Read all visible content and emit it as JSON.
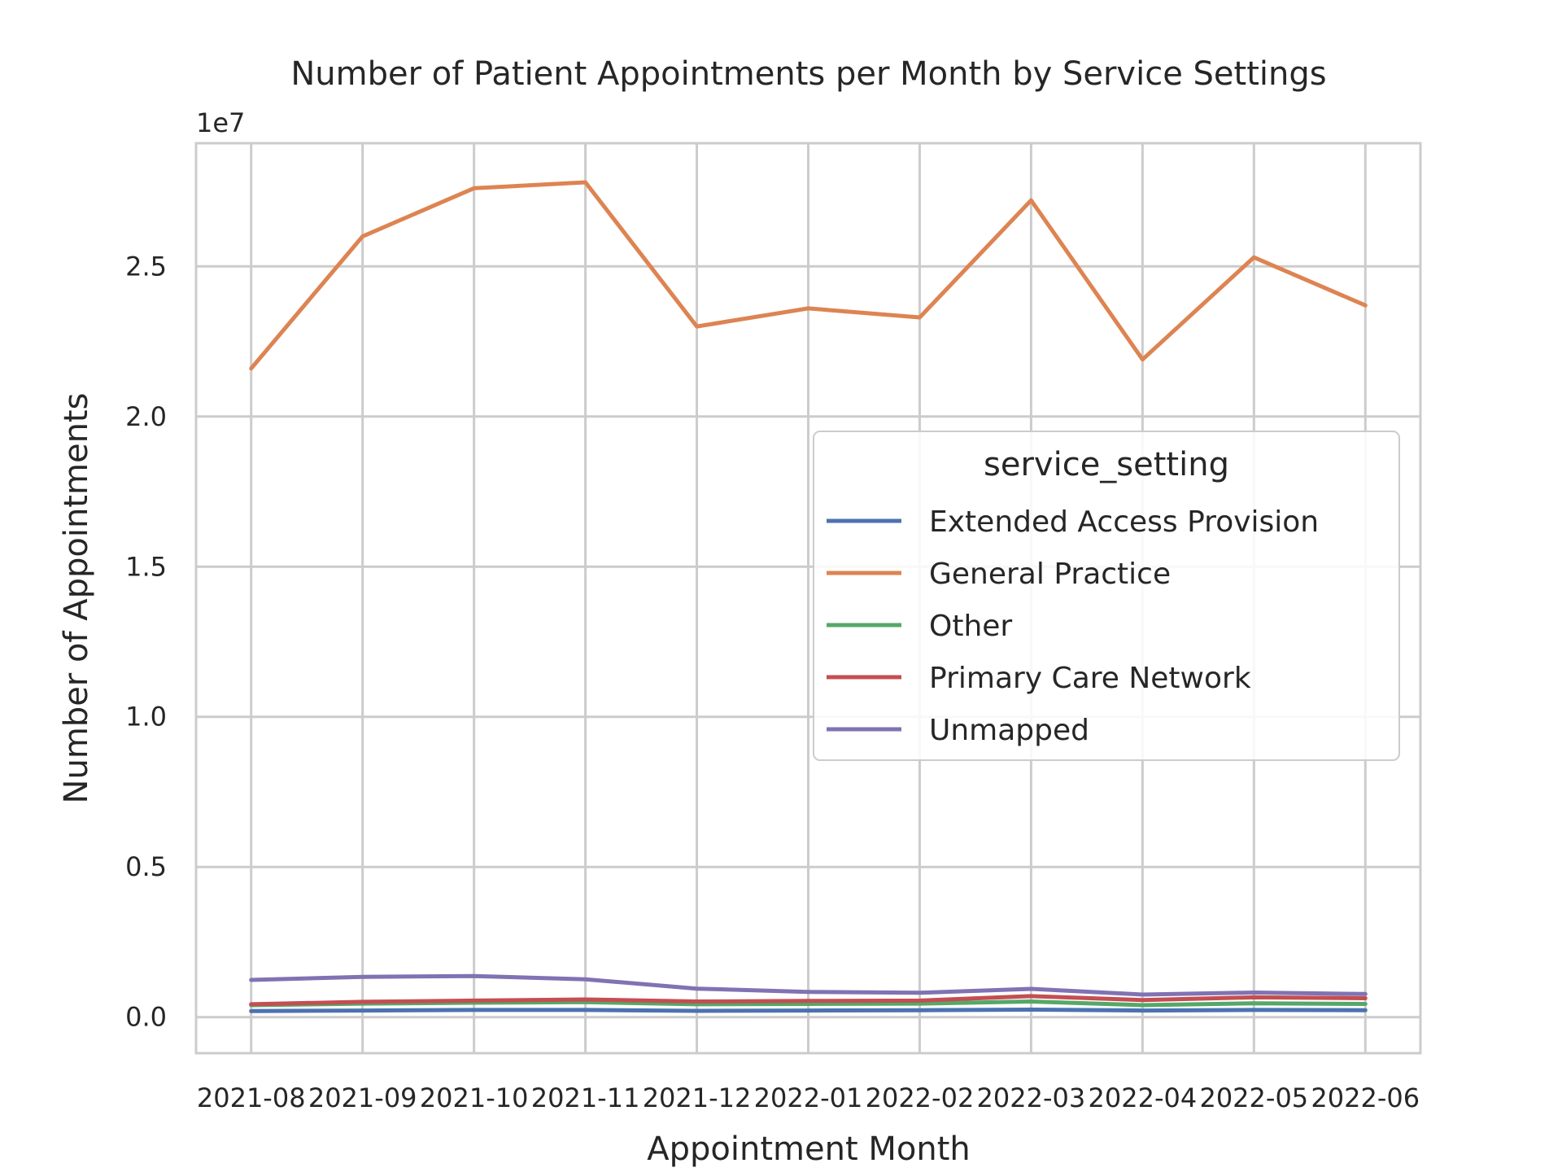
{
  "chart_data": {
    "type": "line",
    "title": "Number of Patient Appointments per Month by Service Settings",
    "xlabel": "Appointment Month",
    "ylabel": "Number of Appointments",
    "y_offset_label": "1e7",
    "categories": [
      "2021-08",
      "2021-09",
      "2021-10",
      "2021-11",
      "2021-12",
      "2022-01",
      "2022-02",
      "2022-03",
      "2022-04",
      "2022-05",
      "2022-06"
    ],
    "yticks": [
      0.0,
      0.5,
      1.0,
      1.5,
      2.0,
      2.5
    ],
    "ytick_labels": [
      "0.0",
      "0.5",
      "1.0",
      "1.5",
      "2.0",
      "2.5"
    ],
    "ylim": [
      -0.12,
      2.91
    ],
    "y_scale": 10000000,
    "grid": true,
    "legend": {
      "title": "service_setting",
      "position": "center-right"
    },
    "series": [
      {
        "name": "Extended Access Provision",
        "color": "#4c72b0",
        "values": [
          0.02,
          0.022,
          0.024,
          0.024,
          0.021,
          0.022,
          0.023,
          0.025,
          0.022,
          0.024,
          0.023
        ]
      },
      {
        "name": "General Practice",
        "color": "#dd8452",
        "values": [
          2.16,
          2.6,
          2.76,
          2.78,
          2.3,
          2.36,
          2.33,
          2.72,
          2.19,
          2.53,
          2.37
        ]
      },
      {
        "name": "Other",
        "color": "#55a868",
        "values": [
          0.04,
          0.045,
          0.048,
          0.05,
          0.043,
          0.044,
          0.045,
          0.052,
          0.04,
          0.046,
          0.044
        ]
      },
      {
        "name": "Primary Care Network",
        "color": "#c44e52",
        "values": [
          0.043,
          0.051,
          0.055,
          0.059,
          0.052,
          0.054,
          0.055,
          0.07,
          0.057,
          0.066,
          0.063
        ]
      },
      {
        "name": "Unmapped",
        "color": "#8172b3",
        "values": [
          0.124,
          0.134,
          0.137,
          0.126,
          0.095,
          0.084,
          0.081,
          0.094,
          0.075,
          0.082,
          0.077
        ]
      }
    ]
  }
}
